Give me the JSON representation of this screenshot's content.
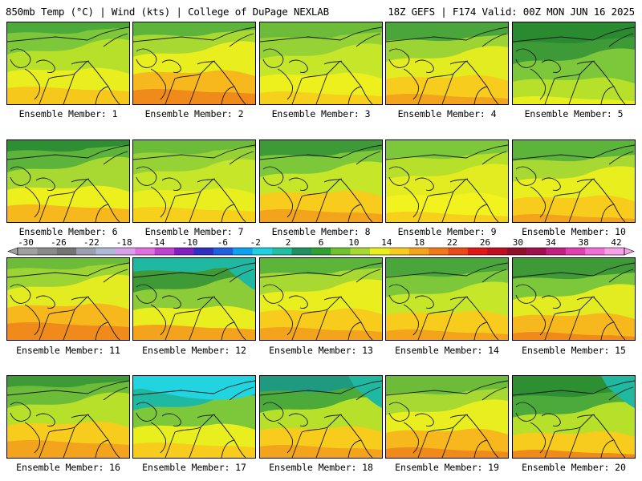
{
  "header": {
    "left_title": "850mb Temp (°C) | Wind (kts) | College of DuPage NEXLAB",
    "right_title": "18Z GEFS | F174 Valid: 00Z MON JUN 16 2025"
  },
  "panels": [
    {
      "label": "Ensemble Member: 1",
      "palette": [
        "#f7c81c",
        "#e9ee1e",
        "#b6e02a",
        "#7cc83a",
        "#4caa3a"
      ],
      "cyan": 0
    },
    {
      "label": "Ensemble Member: 2",
      "palette": [
        "#f08a1a",
        "#f6b81c",
        "#e9ee1e",
        "#a8d832",
        "#5cb43a"
      ],
      "cyan": 0
    },
    {
      "label": "Ensemble Member: 3",
      "palette": [
        "#f7d01c",
        "#eef01e",
        "#c6e62a",
        "#96d236",
        "#6cbc3a"
      ],
      "cyan": 0
    },
    {
      "label": "Ensemble Member: 4",
      "palette": [
        "#f4a41c",
        "#f7cc1c",
        "#e2ec20",
        "#9cd434",
        "#4aa63a"
      ],
      "cyan": 0
    },
    {
      "label": "Ensemble Member: 5",
      "palette": [
        "#e9ee1e",
        "#b6e02a",
        "#7cc83a",
        "#3e9a36",
        "#2a8a30"
      ],
      "cyan": 0
    },
    {
      "label": "Ensemble Member: 6",
      "palette": [
        "#f6b81c",
        "#eef01e",
        "#a8d832",
        "#5cb43a",
        "#2e8e32"
      ],
      "cyan": 0
    },
    {
      "label": "Ensemble Member: 7",
      "palette": [
        "#f7d01c",
        "#e9ee1e",
        "#c6e62a",
        "#96d236",
        "#6cbc3a"
      ],
      "cyan": 0
    },
    {
      "label": "Ensemble Member: 8",
      "palette": [
        "#f4a41c",
        "#f7cc1c",
        "#c6e62a",
        "#7cc83a",
        "#3e9a36"
      ],
      "cyan": 0
    },
    {
      "label": "Ensemble Member: 9",
      "palette": [
        "#f7d01c",
        "#f2f21e",
        "#e2ec20",
        "#b6e02a",
        "#7cc83a"
      ],
      "cyan": 0
    },
    {
      "label": "Ensemble Member: 10",
      "palette": [
        "#f4a41c",
        "#f7cc1c",
        "#e9ee1e",
        "#a8d832",
        "#5cb43a"
      ],
      "cyan": 0
    },
    {
      "label": "Ensemble Member: 11",
      "palette": [
        "#f08a1a",
        "#f6b81c",
        "#e2ec20",
        "#9cd434",
        "#6cbc3a"
      ],
      "cyan": 0
    },
    {
      "label": "Ensemble Member: 12",
      "palette": [
        "#f4a41c",
        "#e9ee1e",
        "#8ccc38",
        "#3e9a36",
        "#1fb8a0"
      ],
      "cyan": 1
    },
    {
      "label": "Ensemble Member: 13",
      "palette": [
        "#f4a41c",
        "#f7cc1c",
        "#e9ee1e",
        "#a8d832",
        "#5cb43a"
      ],
      "cyan": 0
    },
    {
      "label": "Ensemble Member: 14",
      "palette": [
        "#f4a41c",
        "#f7cc1c",
        "#c6e62a",
        "#7cc83a",
        "#4aa63a"
      ],
      "cyan": 0
    },
    {
      "label": "Ensemble Member: 15",
      "palette": [
        "#f08a1a",
        "#f6b81c",
        "#e2ec20",
        "#7cc83a",
        "#3e9a36"
      ],
      "cyan": 0
    },
    {
      "label": "Ensemble Member: 16",
      "palette": [
        "#f4a41c",
        "#f7cc1c",
        "#b6e02a",
        "#6cbc3a",
        "#3e9a36"
      ],
      "cyan": 0
    },
    {
      "label": "Ensemble Member: 17",
      "palette": [
        "#f7cc1c",
        "#e9ee1e",
        "#7cc83a",
        "#1fb8a0",
        "#22d4e0"
      ],
      "cyan": 2
    },
    {
      "label": "Ensemble Member: 18",
      "palette": [
        "#f4a41c",
        "#f7cc1c",
        "#b6e02a",
        "#4caa3a",
        "#1f9a80"
      ],
      "cyan": 1
    },
    {
      "label": "Ensemble Member: 19",
      "palette": [
        "#f08a1a",
        "#f6b81c",
        "#e9ee1e",
        "#a8d832",
        "#6cbc3a"
      ],
      "cyan": 0
    },
    {
      "label": "Ensemble Member: 20",
      "palette": [
        "#f08a1a",
        "#f7cc1c",
        "#b6e02a",
        "#4caa3a",
        "#2e8e32"
      ],
      "cyan": 1
    }
  ],
  "colorbar": {
    "labels": [
      "-30",
      "-26",
      "-22",
      "-18",
      "-14",
      "-10",
      "-6",
      "-2",
      "2",
      "6",
      "10",
      "14",
      "18",
      "22",
      "26",
      "30",
      "34",
      "38",
      "42"
    ],
    "colors": [
      "#a0a0a0",
      "#8a8a8a",
      "#747474",
      "#9aa0b0",
      "#b0b8d8",
      "#d8a0e8",
      "#e070e0",
      "#c040d0",
      "#8020c0",
      "#3030c0",
      "#2060e0",
      "#10a0f0",
      "#20d0e0",
      "#20c0a0",
      "#209060",
      "#30a030",
      "#70c030",
      "#a8d832",
      "#e9ee1e",
      "#f7cc1c",
      "#f4a41c",
      "#f07a1a",
      "#e84a18",
      "#e01818",
      "#c01020",
      "#901028",
      "#a01050",
      "#c02080",
      "#e040b0",
      "#f070d8",
      "#f8a0e8"
    ]
  }
}
